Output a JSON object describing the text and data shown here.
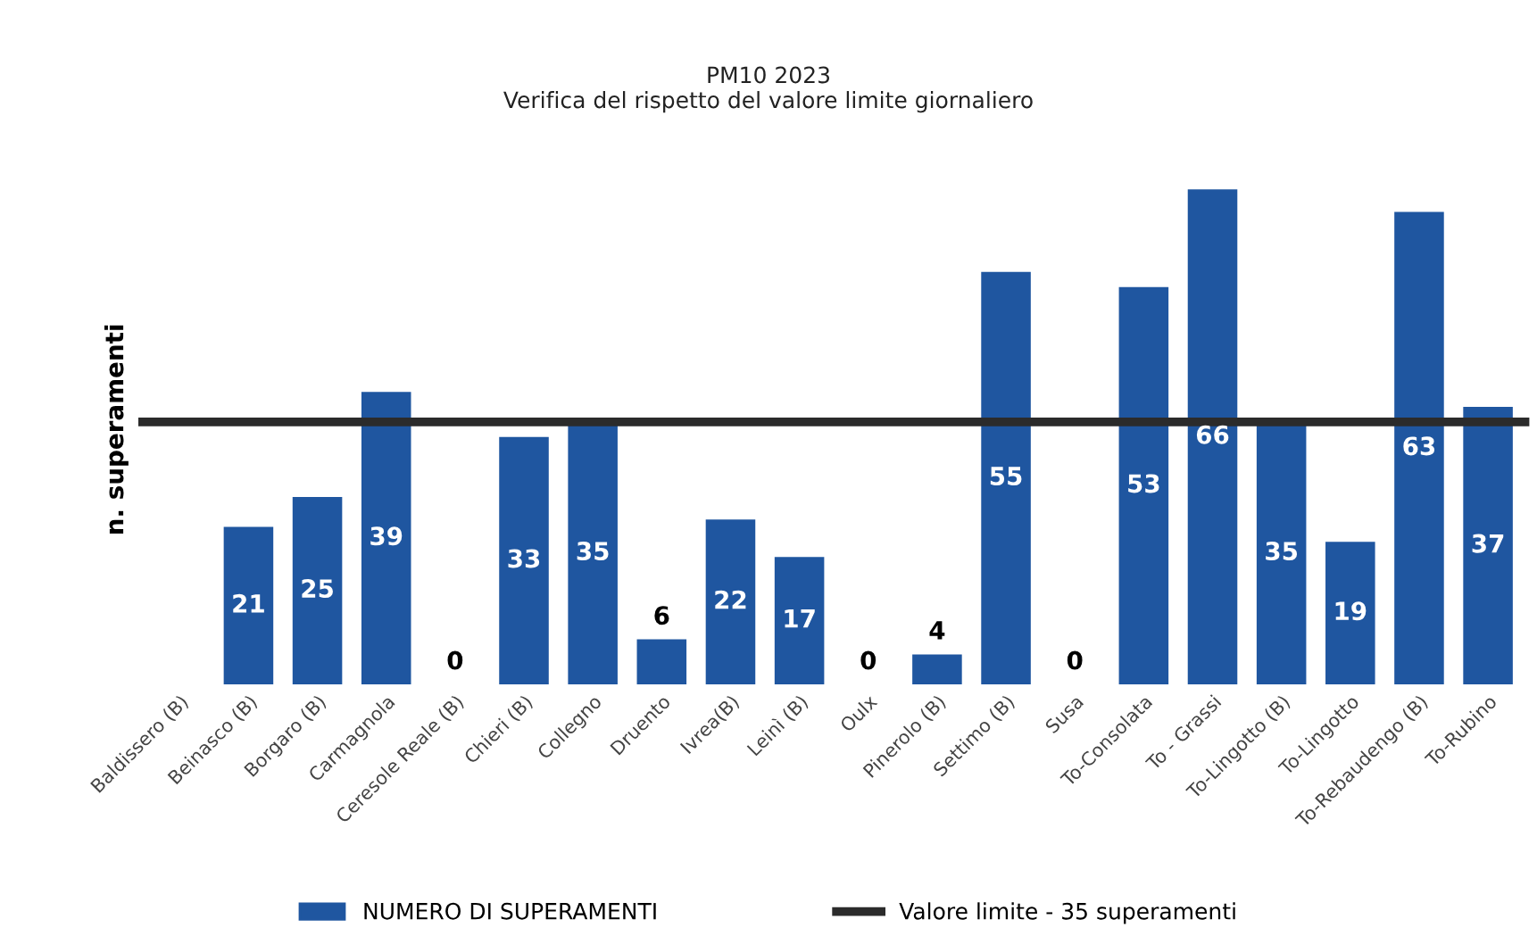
{
  "chart_data": {
    "type": "bar",
    "title": "PM10 2023\nVerifica del rispetto del valore limite giornaliero",
    "ylabel": "n. superamenti",
    "categories": [
      "Baldissero (B)",
      "Beinasco (B)",
      "Borgaro (B)",
      "Carmagnola",
      "Ceresole Reale (B)",
      "Chieri (B)",
      "Collegno",
      "Druento",
      "Ivrea(B)",
      "Leinì (B)",
      "Oulx",
      "Pinerolo (B)",
      "Settimo (B)",
      "Susa",
      "To-Consolata",
      "To - Grassi",
      "To-Lingotto (B)",
      "To-Lingotto",
      "To-Rebaudengo (B)",
      "To-Rubino"
    ],
    "series": [
      {
        "name": "NUMERO DI SUPERAMENTI",
        "color": "#1f56a0",
        "values": [
          null,
          21,
          25,
          39,
          0,
          33,
          35,
          6,
          22,
          17,
          0,
          4,
          55,
          0,
          53,
          66,
          35,
          19,
          63,
          37
        ]
      }
    ],
    "ref_lines": [
      {
        "axis": "y",
        "value": 35,
        "label": "Valore limite - 35 superamenti",
        "color": "#2b2b2b",
        "line_style": "solid"
      }
    ],
    "data_labels": true,
    "legend": "bottom",
    "grid": false
  }
}
